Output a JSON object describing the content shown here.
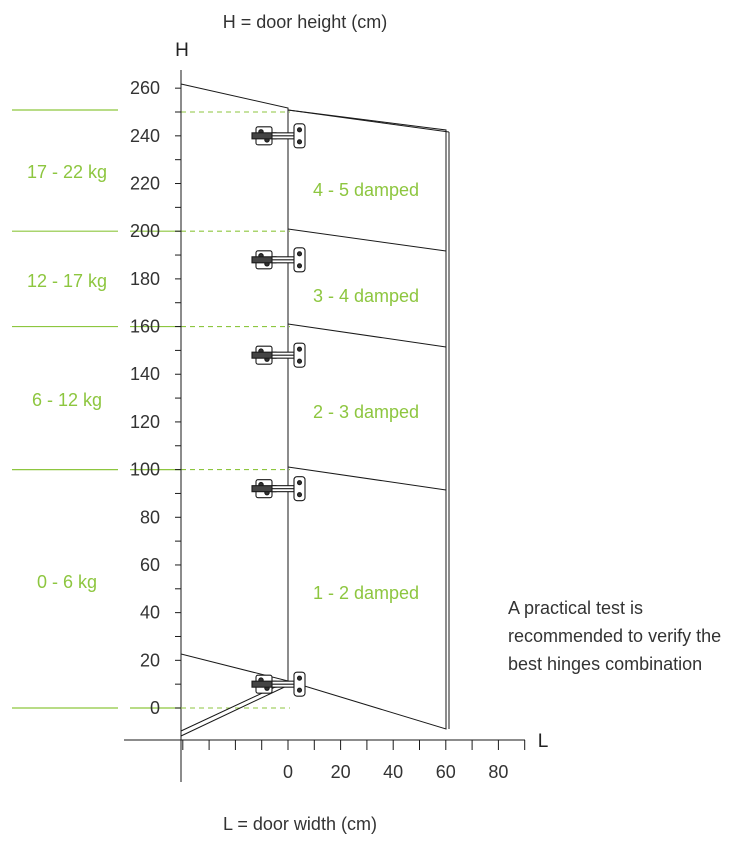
{
  "texts": {
    "h_title": "H = door height (cm)",
    "l_title": "L = door width (cm)",
    "h_axis_letter": "H",
    "l_axis_letter": "L",
    "note": [
      "A practical test is",
      "recommended to verify the",
      "best hinges combination"
    ]
  },
  "y_ticks": [
    "0",
    "20",
    "40",
    "60",
    "80",
    "100",
    "120",
    "140",
    "160",
    "180",
    "200",
    "220",
    "240",
    "260"
  ],
  "x_ticks": [
    "0",
    "20",
    "40",
    "60",
    "80"
  ],
  "weight_ranges": [
    "0 - 6 kg",
    "6 - 12 kg",
    "12 - 17 kg",
    "17 - 22 kg"
  ],
  "zones": [
    "1 - 2 damped",
    "2 - 3 damped",
    "3 - 4 damped",
    "4 - 5 damped"
  ],
  "zone_boundaries_cm": [
    0,
    100,
    160,
    200,
    250
  ],
  "hinge_heights_cm": [
    10,
    92,
    148,
    188,
    240
  ],
  "colors": {
    "accent": "#8dc63f",
    "line": "#1a1a1a",
    "text": "#333333"
  }
}
